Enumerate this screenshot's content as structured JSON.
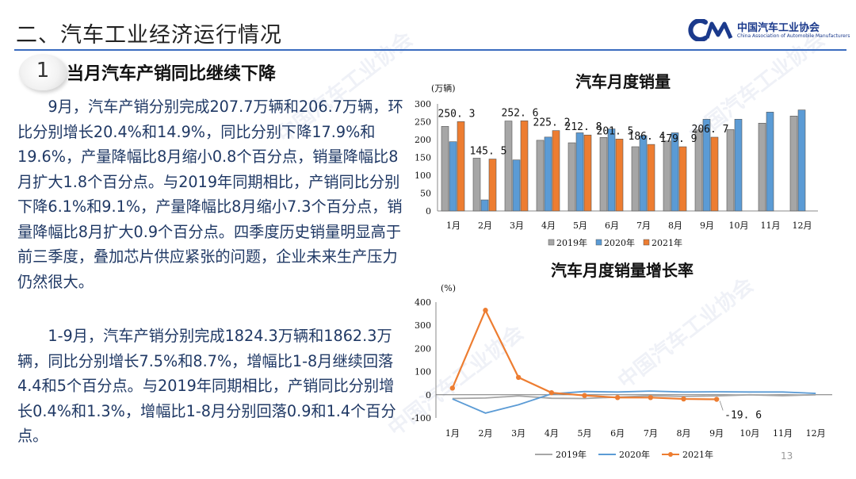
{
  "header": {
    "title": "二、汽车工业经济运行情况",
    "logo_name": "中国汽车工业协会",
    "logo_en": "China Association of Automobile Manufacturers"
  },
  "section": {
    "number": "1",
    "title": "当月汽车产销同比继续下降"
  },
  "paragraphs": [
    "9月，汽车产销分别完成207.7万辆和206.7万辆，环比分别增长20.4%和14.9%，同比分别下降17.9%和19.6%，产量降幅比8月缩小0.8个百分点，销量降幅比8月扩大1.8个百分点。与2019年同期相比，产销同比分别下降6.1%和9.1%，产量降幅比8月缩小7.3个百分点，销量降幅比8月扩大0.9个百分点。四季度历史销量明显高于前三季度，叠加芯片供应紧张的问题，企业未来生产压力仍然很大。",
    "1-9月，汽车产销分别完成1824.3万辆和1862.3万辆，同比分别增长7.5%和8.7%，增幅比1-8月继续回落4.4和5个百分点。与2019年同期相比，产销同比分别增长0.4%和1.3%，增幅比1-8月分别回落0.9和1.4个百分点。"
  ],
  "page_number": "13",
  "colors": {
    "s2019": "#a6a6a6",
    "s2020": "#5b9bd5",
    "s2021": "#ed7d31",
    "brand": "#1b3a8c"
  },
  "chart_data": [
    {
      "type": "bar",
      "title": "汽车月度销量",
      "unit_label": "(万辆)",
      "categories": [
        "1月",
        "2月",
        "3月",
        "4月",
        "5月",
        "6月",
        "7月",
        "8月",
        "9月",
        "10月",
        "11月",
        "12月"
      ],
      "ylim": [
        0,
        300
      ],
      "yticks": [
        0,
        50,
        100,
        150,
        200,
        250,
        300
      ],
      "series": [
        {
          "name": "2019年",
          "values": [
            237,
            148,
            252,
            198,
            191,
            206,
            180,
            196,
            227,
            228,
            246,
            266
          ]
        },
        {
          "name": "2020年",
          "values": [
            194,
            31,
            143,
            207,
            219,
            230,
            211,
            219,
            257,
            257,
            277,
            283
          ]
        },
        {
          "name": "2021年",
          "values": [
            250.3,
            145.5,
            252.6,
            225.2,
            212.8,
            201.5,
            186.4,
            179.9,
            206.7,
            null,
            null,
            null
          ]
        }
      ],
      "data_labels": [
        "250. 3",
        "145. 5",
        "252. 6",
        "225. 2",
        "212. 8",
        "201. 5",
        "186. 4",
        "179. 9",
        "206. 7"
      ],
      "legend_position": "bottom"
    },
    {
      "type": "line",
      "title": "汽车月度销量增长率",
      "unit_label": "(%)",
      "categories": [
        "1月",
        "2月",
        "3月",
        "4月",
        "5月",
        "6月",
        "7月",
        "8月",
        "9月",
        "10月",
        "11月",
        "12月"
      ],
      "ylim": [
        -100,
        400
      ],
      "yticks": [
        -100,
        0,
        100,
        200,
        300,
        400
      ],
      "series": [
        {
          "name": "2019年",
          "values": [
            -16,
            -14,
            -5,
            -15,
            -16,
            -10,
            -4,
            -7,
            -5,
            0,
            -4,
            0
          ]
        },
        {
          "name": "2020年",
          "values": [
            -18,
            -79,
            -43,
            4,
            14,
            12,
            16,
            12,
            13,
            12,
            12,
            6
          ]
        },
        {
          "name": "2021年",
          "values": [
            29,
            365,
            75,
            9,
            -3,
            -12,
            -12,
            -18,
            -19.6,
            null,
            null,
            null
          ]
        }
      ],
      "annotation": "-19. 6",
      "legend_position": "bottom"
    }
  ]
}
